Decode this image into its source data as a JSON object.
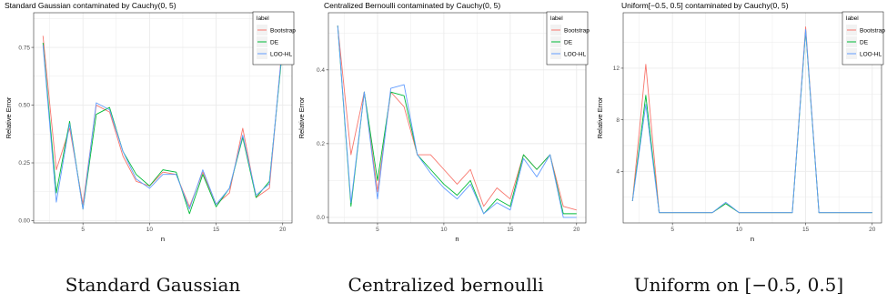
{
  "colors": {
    "Bootstrap": "#F8766D",
    "DE": "#00BA38",
    "LOO-HL": "#619CFF",
    "grid": "#ebebeb"
  },
  "captions": [
    "Standard Gaussian",
    "Centralized bernoulli",
    "Uniform on [−0.5, 0.5]"
  ],
  "chart_data": [
    {
      "type": "line",
      "title": "Standard Gaussian contaminated by Cauchy(0, 5)",
      "xlabel": "n",
      "ylabel": "Relative Error",
      "xlim": [
        1.3,
        20.7
      ],
      "ylim": [
        -0.01,
        0.9
      ],
      "xticks": [
        5,
        10,
        15,
        20
      ],
      "yticks": [
        0,
        0.25,
        0.5,
        0.75
      ],
      "yticklabels": [
        "0.00",
        "0.25",
        "0.50",
        "0.75"
      ],
      "legend_title": "label",
      "legend_position": "top-right",
      "grid": true,
      "x": [
        2,
        3,
        4,
        5,
        6,
        7,
        8,
        9,
        10,
        11,
        12,
        13,
        14,
        15,
        16,
        17,
        18,
        19,
        20
      ],
      "series": [
        {
          "name": "Bootstrap",
          "values": [
            0.8,
            0.22,
            0.4,
            0.07,
            0.5,
            0.47,
            0.28,
            0.17,
            0.15,
            0.21,
            0.2,
            0.06,
            0.21,
            0.07,
            0.12,
            0.4,
            0.1,
            0.14,
            0.78
          ]
        },
        {
          "name": "DE",
          "values": [
            0.77,
            0.12,
            0.43,
            0.05,
            0.46,
            0.49,
            0.3,
            0.2,
            0.15,
            0.22,
            0.21,
            0.03,
            0.2,
            0.06,
            0.14,
            0.36,
            0.1,
            0.17,
            0.75
          ]
        },
        {
          "name": "LOO-HL",
          "values": [
            0.76,
            0.08,
            0.42,
            0.05,
            0.51,
            0.48,
            0.3,
            0.18,
            0.14,
            0.2,
            0.2,
            0.05,
            0.22,
            0.07,
            0.14,
            0.37,
            0.11,
            0.16,
            0.77
          ]
        }
      ]
    },
    {
      "type": "line",
      "title": "Centralized Bernoulli contaminated by Cauchy(0, 5)",
      "xlabel": "n",
      "ylabel": "Relative Error",
      "xlim": [
        1.3,
        20.7
      ],
      "ylim": [
        -0.015,
        0.555
      ],
      "xticks": [
        5,
        10,
        15,
        20
      ],
      "yticks": [
        0,
        0.2,
        0.4
      ],
      "yticklabels": [
        "0.0",
        "0.2",
        "0.4"
      ],
      "legend_title": "label",
      "legend_position": "top-right",
      "grid": true,
      "x": [
        2,
        3,
        4,
        5,
        6,
        7,
        8,
        9,
        10,
        11,
        12,
        13,
        14,
        15,
        16,
        17,
        18,
        19,
        20
      ],
      "series": [
        {
          "name": "Bootstrap",
          "values": [
            0.52,
            0.17,
            0.34,
            0.07,
            0.34,
            0.3,
            0.17,
            0.17,
            0.13,
            0.09,
            0.13,
            0.03,
            0.08,
            0.05,
            0.17,
            0.13,
            0.17,
            0.03,
            0.02
          ]
        },
        {
          "name": "DE",
          "values": [
            0.52,
            0.03,
            0.34,
            0.1,
            0.34,
            0.33,
            0.17,
            0.13,
            0.09,
            0.06,
            0.1,
            0.01,
            0.05,
            0.03,
            0.17,
            0.13,
            0.17,
            0.01,
            0.01
          ]
        },
        {
          "name": "LOO-HL",
          "values": [
            0.52,
            0.04,
            0.34,
            0.05,
            0.35,
            0.36,
            0.17,
            0.12,
            0.08,
            0.05,
            0.09,
            0.01,
            0.04,
            0.02,
            0.16,
            0.11,
            0.17,
            0.0,
            0.0
          ]
        }
      ]
    },
    {
      "type": "line",
      "title": "Uniform[−0.5, 0.5] contaminated by Cauchy(0, 5)",
      "xlabel": "n",
      "ylabel": "Relative Error",
      "xlim": [
        1.3,
        20.7
      ],
      "ylim": [
        0.0,
        16.3
      ],
      "xticks": [
        5,
        10,
        15,
        20
      ],
      "yticks": [
        4,
        8,
        12
      ],
      "yticklabels": [
        "4",
        "8",
        "12"
      ],
      "legend_title": "label",
      "legend_position": "top-right",
      "grid": true,
      "x": [
        2,
        3,
        4,
        5,
        6,
        7,
        8,
        9,
        10,
        11,
        12,
        13,
        14,
        15,
        16,
        17,
        18,
        19,
        20
      ],
      "series": [
        {
          "name": "Bootstrap",
          "values": [
            1.7,
            12.3,
            0.8,
            0.8,
            0.8,
            0.8,
            0.8,
            1.5,
            0.8,
            0.8,
            0.8,
            0.8,
            0.8,
            15.2,
            0.8,
            0.8,
            0.8,
            0.8,
            0.8
          ]
        },
        {
          "name": "DE",
          "values": [
            1.7,
            9.9,
            0.8,
            0.8,
            0.8,
            0.8,
            0.8,
            1.5,
            0.8,
            0.8,
            0.8,
            0.8,
            0.8,
            14.9,
            0.8,
            0.8,
            0.8,
            0.8,
            0.8
          ]
        },
        {
          "name": "LOO-HL",
          "values": [
            1.7,
            9.2,
            0.8,
            0.8,
            0.8,
            0.8,
            0.8,
            1.6,
            0.8,
            0.8,
            0.8,
            0.8,
            0.8,
            15.0,
            0.8,
            0.8,
            0.8,
            0.8,
            0.8
          ]
        }
      ]
    }
  ]
}
